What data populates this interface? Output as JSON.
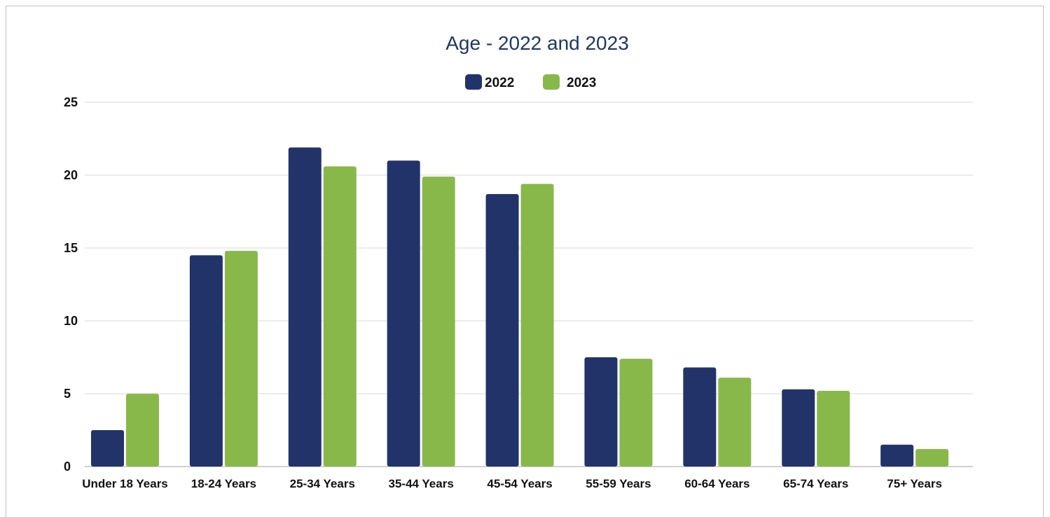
{
  "colors": {
    "series_2022": "#22336a",
    "series_2023": "#88b84a",
    "title": "#1f3864",
    "gridline": "#d9d9d9",
    "baseline": "#d0d0d0"
  },
  "chart_data": {
    "type": "bar",
    "title": "Age - 2022 and 2023",
    "xlabel": "",
    "ylabel": "",
    "ylim": [
      0,
      25
    ],
    "yticks": [
      0,
      5,
      10,
      15,
      20,
      25
    ],
    "grid": true,
    "legend_position": "top-center",
    "categories": [
      "Under 18 Years",
      "18-24 Years",
      "25-34 Years",
      "35-44 Years",
      "45-54 Years",
      "55-59 Years",
      "60-64 Years",
      "65-74 Years",
      "75+ Years"
    ],
    "series": [
      {
        "name": "2022",
        "values": [
          2.5,
          14.5,
          21.9,
          21.0,
          18.7,
          7.5,
          6.8,
          5.3,
          1.5
        ]
      },
      {
        "name": "2023",
        "values": [
          5.0,
          14.8,
          20.6,
          19.9,
          19.4,
          7.4,
          6.1,
          5.2,
          1.2
        ]
      }
    ]
  }
}
